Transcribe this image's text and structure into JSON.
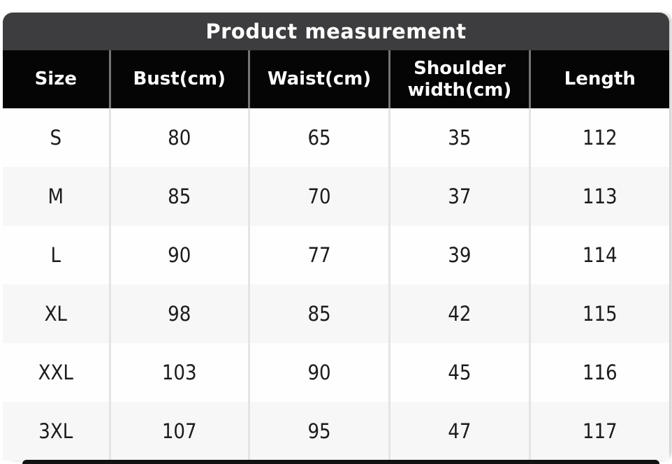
{
  "chart_data": {
    "type": "table",
    "title": "Product measurement",
    "columns": [
      "Size",
      "Bust(cm)",
      "Waist(cm)",
      "Shoulder width(cm)",
      "Length"
    ],
    "rows": [
      [
        "S",
        "80",
        "65",
        "35",
        "112"
      ],
      [
        "M",
        "85",
        "70",
        "37",
        "113"
      ],
      [
        "L",
        "90",
        "77",
        "39",
        "114"
      ],
      [
        "XL",
        "98",
        "85",
        "42",
        "115"
      ],
      [
        "XXL",
        "103",
        "90",
        "45",
        "116"
      ],
      [
        "3XL",
        "107",
        "95",
        "47",
        "117"
      ]
    ]
  },
  "colors": {
    "title_bar_bg": "#3d3d3f",
    "header_bg": "#050505",
    "header_text": "#ffffff",
    "row_bg": "#fefefe",
    "row_alt_bg": "#f7f7f7",
    "body_text": "#1c1c1c",
    "header_divider": "#757575",
    "body_divider": "#e4e4e4"
  }
}
